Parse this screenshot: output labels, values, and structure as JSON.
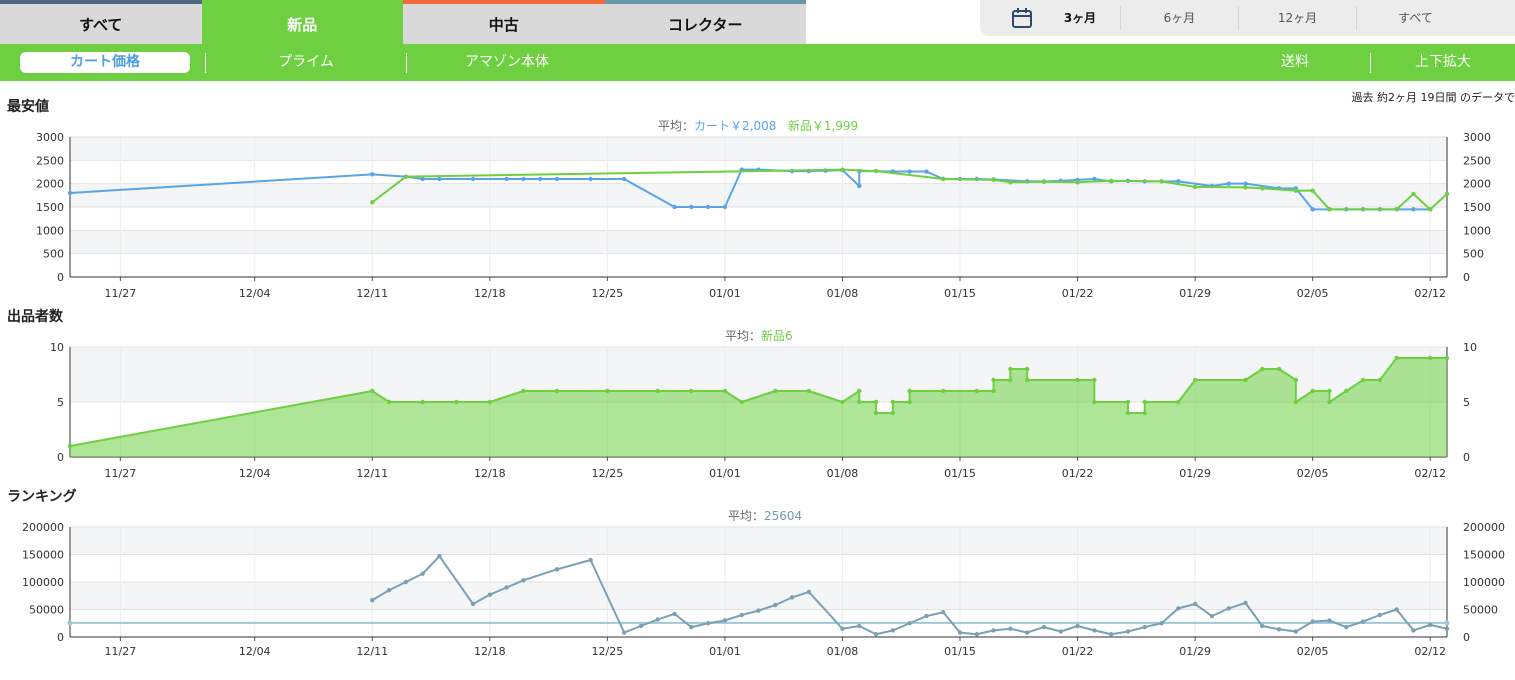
{
  "tabs": [
    {
      "label": "すべて"
    },
    {
      "label": "新品"
    },
    {
      "label": "中古"
    },
    {
      "label": "コレクター"
    }
  ],
  "ranges": [
    "3ヶ月",
    "6ヶ月",
    "12ヶ月",
    "すべて"
  ],
  "subtabs": {
    "cart": "カート価格",
    "prime": "プライム",
    "amazon": "アマゾン本体",
    "shipping": "送料",
    "zoom": "上下拡大"
  },
  "note": "過去 約2ヶ月 19日間 のデータで",
  "colors": {
    "cart": "#5aa4e6",
    "new": "#6ecf41",
    "rank": "#7aa0b4",
    "rank_avg": "#9fc7d8"
  },
  "x_ticks": [
    "11/27",
    "12/04",
    "12/11",
    "12/18",
    "12/25",
    "01/01",
    "01/08",
    "01/15",
    "01/22",
    "01/29",
    "02/05",
    "02/12"
  ],
  "chart_data": [
    {
      "type": "line",
      "title": "最安値",
      "avg": {
        "prefix": "平均：",
        "cart": "カート￥2,008",
        "new": "新品￥1,999"
      },
      "ylim": [
        0,
        3000
      ],
      "yticks": [
        "0",
        "500",
        "1000",
        "1500",
        "2000",
        "2500",
        "3000"
      ],
      "x_domain": [
        "11/24",
        "02/13"
      ],
      "series": [
        {
          "name": "カート",
          "points": [
            [
              "11/24",
              1800
            ],
            [
              "12/11",
              2200
            ],
            [
              "12/13",
              2150
            ],
            [
              "12/14",
              2100
            ],
            [
              "12/15",
              2100
            ],
            [
              "12/17",
              2100
            ],
            [
              "12/19",
              2100
            ],
            [
              "12/20",
              2100
            ],
            [
              "12/21",
              2100
            ],
            [
              "12/22",
              2100
            ],
            [
              "12/24",
              2100
            ],
            [
              "12/26",
              2100
            ],
            [
              "12/29",
              1500
            ],
            [
              "12/30",
              1500
            ],
            [
              "12/31",
              1500
            ],
            [
              "01/01",
              1500
            ],
            [
              "01/02",
              2300
            ],
            [
              "01/03",
              2300
            ],
            [
              "01/05",
              2270
            ],
            [
              "01/06",
              2270
            ],
            [
              "01/07",
              2280
            ],
            [
              "01/08",
              2290
            ],
            [
              "01/09",
              1950
            ],
            [
              "01/09",
              2270
            ],
            [
              "01/10",
              2270
            ],
            [
              "01/11",
              2260
            ],
            [
              "01/12",
              2260
            ],
            [
              "01/13",
              2260
            ],
            [
              "01/14",
              2100
            ],
            [
              "01/15",
              2100
            ],
            [
              "01/16",
              2100
            ],
            [
              "01/17",
              2090
            ],
            [
              "01/19",
              2050
            ],
            [
              "01/20",
              2050
            ],
            [
              "01/21",
              2060
            ],
            [
              "01/22",
              2080
            ],
            [
              "01/23",
              2100
            ],
            [
              "01/24",
              2050
            ],
            [
              "01/25",
              2060
            ],
            [
              "01/26",
              2050
            ],
            [
              "01/27",
              2050
            ],
            [
              "01/28",
              2050
            ],
            [
              "01/30",
              1950
            ],
            [
              "01/31",
              2000
            ],
            [
              "02/01",
              2000
            ],
            [
              "02/03",
              1900
            ],
            [
              "02/04",
              1900
            ],
            [
              "02/05",
              1450
            ],
            [
              "02/06",
              1450
            ],
            [
              "02/07",
              1450
            ],
            [
              "02/08",
              1450
            ],
            [
              "02/09",
              1450
            ],
            [
              "02/10",
              1450
            ],
            [
              "02/11",
              1450
            ],
            [
              "02/12",
              1450
            ]
          ]
        },
        {
          "name": "新品",
          "points": [
            [
              "12/11",
              1600
            ],
            [
              "12/13",
              2150
            ],
            [
              "01/08",
              2300
            ],
            [
              "01/10",
              2270
            ],
            [
              "01/14",
              2100
            ],
            [
              "01/17",
              2080
            ],
            [
              "01/18",
              2030
            ],
            [
              "01/20",
              2040
            ],
            [
              "01/22",
              2030
            ],
            [
              "01/24",
              2060
            ],
            [
              "01/27",
              2050
            ],
            [
              "01/29",
              1930
            ],
            [
              "02/01",
              1920
            ],
            [
              "02/02",
              1900
            ],
            [
              "02/04",
              1850
            ],
            [
              "02/05",
              1850
            ],
            [
              "02/06",
              1450
            ],
            [
              "02/10",
              1450
            ],
            [
              "02/11",
              1780
            ],
            [
              "02/12",
              1450
            ],
            [
              "02/13",
              1780
            ]
          ]
        }
      ]
    },
    {
      "type": "area",
      "title": "出品者数",
      "avg": {
        "prefix": "平均：",
        "new": "新品6"
      },
      "ylim": [
        0,
        10
      ],
      "yticks": [
        "0",
        "5",
        "10"
      ],
      "x_domain": [
        "11/24",
        "02/13"
      ],
      "series": [
        {
          "name": "新品",
          "points": [
            [
              "11/24",
              1
            ],
            [
              "12/11",
              6
            ],
            [
              "12/12",
              5
            ],
            [
              "12/14",
              5
            ],
            [
              "12/16",
              5
            ],
            [
              "12/18",
              5
            ],
            [
              "12/20",
              6
            ],
            [
              "12/22",
              6
            ],
            [
              "12/25",
              6
            ],
            [
              "12/28",
              6
            ],
            [
              "12/30",
              6
            ],
            [
              "01/01",
              6
            ],
            [
              "01/02",
              5
            ],
            [
              "01/04",
              6
            ],
            [
              "01/06",
              6
            ],
            [
              "01/08",
              5
            ],
            [
              "01/09",
              6
            ],
            [
              "01/09",
              5
            ],
            [
              "01/10",
              5
            ],
            [
              "01/10",
              4
            ],
            [
              "01/11",
              4
            ],
            [
              "01/11",
              5
            ],
            [
              "01/12",
              5
            ],
            [
              "01/12",
              6
            ],
            [
              "01/14",
              6
            ],
            [
              "01/16",
              6
            ],
            [
              "01/17",
              6
            ],
            [
              "01/17",
              7
            ],
            [
              "01/18",
              7
            ],
            [
              "01/18",
              8
            ],
            [
              "01/19",
              8
            ],
            [
              "01/19",
              7
            ],
            [
              "01/22",
              7
            ],
            [
              "01/23",
              7
            ],
            [
              "01/23",
              5
            ],
            [
              "01/25",
              5
            ],
            [
              "01/25",
              4
            ],
            [
              "01/26",
              4
            ],
            [
              "01/26",
              5
            ],
            [
              "01/28",
              5
            ],
            [
              "01/29",
              7
            ],
            [
              "02/01",
              7
            ],
            [
              "02/02",
              8
            ],
            [
              "02/03",
              8
            ],
            [
              "02/04",
              7
            ],
            [
              "02/04",
              5
            ],
            [
              "02/05",
              6
            ],
            [
              "02/06",
              6
            ],
            [
              "02/06",
              5
            ],
            [
              "02/07",
              6
            ],
            [
              "02/08",
              7
            ],
            [
              "02/09",
              7
            ],
            [
              "02/10",
              9
            ],
            [
              "02/12",
              9
            ],
            [
              "02/13",
              9
            ]
          ]
        }
      ]
    },
    {
      "type": "line",
      "title": "ランキング",
      "avg": {
        "prefix": "平均：",
        "rank": "25604"
      },
      "ylim": [
        0,
        200000
      ],
      "yticks": [
        "0",
        "50000",
        "100000",
        "150000",
        "200000"
      ],
      "x_domain": [
        "11/24",
        "02/13"
      ],
      "average_value": 25604,
      "series": [
        {
          "name": "ランキング",
          "points": [
            [
              "12/11",
              67000
            ],
            [
              "12/12",
              85000
            ],
            [
              "12/13",
              100000
            ],
            [
              "12/14",
              115000
            ],
            [
              "12/15",
              147000
            ],
            [
              "12/17",
              60000
            ],
            [
              "12/18",
              77000
            ],
            [
              "12/19",
              90000
            ],
            [
              "12/20",
              103000
            ],
            [
              "12/22",
              123000
            ],
            [
              "12/24",
              140000
            ],
            [
              "12/26",
              8000
            ],
            [
              "12/27",
              20000
            ],
            [
              "12/28",
              32000
            ],
            [
              "12/29",
              42000
            ],
            [
              "12/30",
              18000
            ],
            [
              "12/31",
              25000
            ],
            [
              "01/01",
              30000
            ],
            [
              "01/02",
              40000
            ],
            [
              "01/03",
              48000
            ],
            [
              "01/04",
              58000
            ],
            [
              "01/05",
              72000
            ],
            [
              "01/06",
              82000
            ],
            [
              "01/08",
              15000
            ],
            [
              "01/09",
              20000
            ],
            [
              "01/10",
              5000
            ],
            [
              "01/11",
              12000
            ],
            [
              "01/12",
              25000
            ],
            [
              "01/13",
              38000
            ],
            [
              "01/14",
              45000
            ],
            [
              "01/15",
              8000
            ],
            [
              "01/16",
              5000
            ],
            [
              "01/17",
              12000
            ],
            [
              "01/18",
              15000
            ],
            [
              "01/19",
              8000
            ],
            [
              "01/20",
              18000
            ],
            [
              "01/21",
              10000
            ],
            [
              "01/22",
              20000
            ],
            [
              "01/23",
              12000
            ],
            [
              "01/24",
              5000
            ],
            [
              "01/25",
              10000
            ],
            [
              "01/26",
              18000
            ],
            [
              "01/27",
              25000
            ],
            [
              "01/28",
              52000
            ],
            [
              "01/29",
              60000
            ],
            [
              "01/30",
              38000
            ],
            [
              "01/31",
              52000
            ],
            [
              "02/01",
              62000
            ],
            [
              "02/02",
              20000
            ],
            [
              "02/03",
              14000
            ],
            [
              "02/04",
              10000
            ],
            [
              "02/05",
              28000
            ],
            [
              "02/06",
              30000
            ],
            [
              "02/07",
              18000
            ],
            [
              "02/08",
              28000
            ],
            [
              "02/09",
              40000
            ],
            [
              "02/10",
              50000
            ],
            [
              "02/11",
              12000
            ],
            [
              "02/12",
              22000
            ],
            [
              "02/13",
              15000
            ]
          ]
        }
      ]
    }
  ]
}
